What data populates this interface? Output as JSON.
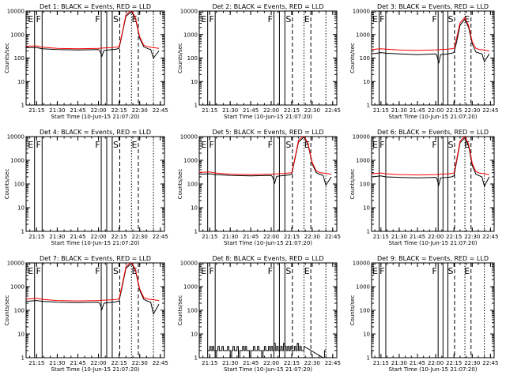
{
  "colors": {
    "events": "#000000",
    "lld": "#ff0000",
    "background": "#ffffff"
  },
  "common": {
    "xlabel": "Start Time (10-Jun-15 21:07:20)",
    "ylabel": "Counts/sec",
    "ylim": [
      1,
      10000
    ],
    "y_scale": "log",
    "ytick_values": [
      1,
      10,
      100,
      1000,
      10000
    ],
    "ytick_labels": [
      "1",
      "10",
      "100",
      "1000",
      "10000"
    ],
    "xlim": [
      "21:07:20",
      "22:48:00"
    ],
    "xtick_values": [
      "21:15",
      "21:30",
      "21:45",
      "22:00",
      "22:15",
      "22:30",
      "22:45"
    ],
    "xtick_labels": [
      "21:15",
      "21:30",
      "21:45",
      "22:00",
      "22:15",
      "22:30",
      "22:45"
    ],
    "markers": [
      {
        "time": "21:13:30",
        "style": "solid",
        "label": "E"
      },
      {
        "time": "21:19:00",
        "style": "solid",
        "label": "F"
      },
      {
        "time": "22:02:00",
        "style": "solid",
        "label": "F"
      },
      {
        "time": "22:06:00",
        "style": "solid",
        "label": ""
      },
      {
        "time": "22:10:00",
        "style": "solid",
        "label": ""
      },
      {
        "time": "22:15:30",
        "style": "dashed",
        "label": "S"
      },
      {
        "time": "22:24:00",
        "style": "dotted",
        "label": ""
      },
      {
        "time": "22:29:00",
        "style": "dashed",
        "label": "E"
      },
      {
        "time": "22:40:00",
        "style": "dotted",
        "label": ""
      }
    ]
  },
  "chart_data": [
    {
      "type": "line",
      "title": "Det 1: BLACK = Events, RED = LLD",
      "series": [
        {
          "name": "Events",
          "x": [
            "21:07:20",
            "21:15",
            "21:19",
            "21:30",
            "21:45",
            "22:00",
            "22:01",
            "22:02:30",
            "22:04",
            "22:10",
            "22:13",
            "22:15",
            "22:17",
            "22:20",
            "22:24",
            "22:27",
            "22:30",
            "22:33",
            "22:36",
            "22:38",
            "22:40",
            "22:44"
          ],
          "values": [
            280,
            280,
            250,
            230,
            220,
            230,
            200,
            120,
            210,
            230,
            240,
            260,
            900,
            6000,
            9500,
            4500,
            700,
            300,
            250,
            230,
            100,
            200
          ]
        },
        {
          "name": "LLD",
          "x": [
            "21:07:20",
            "21:15",
            "21:19",
            "21:30",
            "21:45",
            "22:00",
            "22:04",
            "22:10",
            "22:13",
            "22:15",
            "22:17",
            "22:20",
            "22:24",
            "22:27",
            "22:30",
            "22:33",
            "22:36",
            "22:40",
            "22:44"
          ],
          "values": [
            320,
            330,
            290,
            260,
            250,
            260,
            270,
            280,
            290,
            300,
            1000,
            7000,
            11000,
            5000,
            800,
            350,
            300,
            280,
            260
          ]
        }
      ]
    },
    {
      "type": "line",
      "title": "Det 2: BLACK = Events, RED = LLD",
      "series": []
    },
    {
      "type": "line",
      "title": "Det 3: BLACK = Events, RED = LLD",
      "series": [
        {
          "name": "Events",
          "x": [
            "21:07:20",
            "21:15",
            "21:19",
            "21:30",
            "21:45",
            "22:00",
            "22:01",
            "22:02:30",
            "22:04",
            "22:10",
            "22:13",
            "22:15",
            "22:17",
            "22:20",
            "22:24",
            "22:27",
            "22:30",
            "22:33",
            "22:36",
            "22:38",
            "22:40",
            "22:44"
          ],
          "values": [
            150,
            170,
            160,
            150,
            140,
            150,
            130,
            60,
            140,
            150,
            160,
            170,
            450,
            2500,
            4500,
            2000,
            400,
            180,
            160,
            150,
            70,
            150
          ]
        },
        {
          "name": "LLD",
          "x": [
            "21:07:20",
            "21:15",
            "21:19",
            "21:30",
            "21:45",
            "22:00",
            "22:04",
            "22:10",
            "22:13",
            "22:15",
            "22:17",
            "22:20",
            "22:24",
            "22:27",
            "22:30",
            "22:33",
            "22:36",
            "22:40",
            "22:44"
          ],
          "values": [
            230,
            250,
            240,
            220,
            210,
            220,
            230,
            240,
            250,
            260,
            650,
            3200,
            5200,
            2400,
            500,
            260,
            230,
            220,
            200
          ]
        }
      ]
    },
    {
      "type": "line",
      "title": "Det 4: BLACK = Events, RED = LLD",
      "series": []
    },
    {
      "type": "line",
      "title": "Det 5: BLACK = Events, RED = LLD",
      "series": [
        {
          "name": "Events",
          "x": [
            "21:07:20",
            "21:15",
            "21:19",
            "21:30",
            "21:45",
            "22:00",
            "22:01",
            "22:02:30",
            "22:04",
            "22:10",
            "22:13",
            "22:15",
            "22:17",
            "22:20",
            "22:24",
            "22:27",
            "22:30",
            "22:33",
            "22:36",
            "22:38",
            "22:40",
            "22:44"
          ],
          "values": [
            260,
            270,
            250,
            230,
            220,
            230,
            200,
            110,
            210,
            230,
            240,
            260,
            900,
            6000,
            9500,
            4500,
            700,
            300,
            250,
            230,
            90,
            200
          ]
        },
        {
          "name": "LLD",
          "x": [
            "21:07:20",
            "21:15",
            "21:19",
            "21:30",
            "21:45",
            "22:00",
            "22:04",
            "22:10",
            "22:13",
            "22:15",
            "22:17",
            "22:20",
            "22:24",
            "22:27",
            "22:30",
            "22:33",
            "22:36",
            "22:40",
            "22:44"
          ],
          "values": [
            310,
            320,
            290,
            260,
            250,
            260,
            270,
            280,
            290,
            300,
            1000,
            7000,
            11000,
            5000,
            800,
            350,
            300,
            280,
            260
          ]
        }
      ]
    },
    {
      "type": "line",
      "title": "Det 6: BLACK = Events, RED = LLD",
      "series": [
        {
          "name": "Events",
          "x": [
            "21:07:20",
            "21:15",
            "21:19",
            "21:30",
            "21:45",
            "22:00",
            "22:01",
            "22:02:30",
            "22:04",
            "22:10",
            "22:13",
            "22:15",
            "22:17",
            "22:20",
            "22:24",
            "22:27",
            "22:30",
            "22:33",
            "22:36",
            "22:38",
            "22:40",
            "22:44"
          ],
          "values": [
            200,
            220,
            200,
            190,
            180,
            190,
            170,
            90,
            180,
            190,
            200,
            220,
            800,
            5500,
            9000,
            4000,
            600,
            260,
            220,
            200,
            80,
            200
          ]
        },
        {
          "name": "LLD",
          "x": [
            "21:07:20",
            "21:15",
            "21:19",
            "21:30",
            "21:45",
            "22:00",
            "22:04",
            "22:10",
            "22:13",
            "22:15",
            "22:17",
            "22:20",
            "22:24",
            "22:27",
            "22:30",
            "22:33",
            "22:36",
            "22:40",
            "22:44"
          ],
          "values": [
            270,
            290,
            270,
            250,
            240,
            250,
            260,
            270,
            280,
            290,
            950,
            6500,
            10500,
            4800,
            750,
            330,
            290,
            270,
            250
          ]
        }
      ]
    },
    {
      "type": "line",
      "title": "Det 7: BLACK = Events, RED = LLD",
      "series": [
        {
          "name": "Events",
          "x": [
            "21:07:20",
            "21:15",
            "21:19",
            "21:30",
            "21:45",
            "22:00",
            "22:01",
            "22:02:30",
            "22:04",
            "22:10",
            "22:13",
            "22:15",
            "22:17",
            "22:20",
            "22:24",
            "22:27",
            "22:30",
            "22:33",
            "22:36",
            "22:38",
            "22:40",
            "22:44"
          ],
          "values": [
            240,
            260,
            240,
            220,
            210,
            220,
            190,
            110,
            200,
            220,
            230,
            250,
            850,
            6000,
            9500,
            4500,
            700,
            290,
            240,
            220,
            70,
            180
          ]
        },
        {
          "name": "LLD",
          "x": [
            "21:07:20",
            "21:15",
            "21:19",
            "21:30",
            "21:45",
            "22:00",
            "22:04",
            "22:10",
            "22:13",
            "22:15",
            "22:17",
            "22:20",
            "22:24",
            "22:27",
            "22:30",
            "22:33",
            "22:36",
            "22:40",
            "22:44"
          ],
          "values": [
            300,
            320,
            290,
            260,
            250,
            260,
            270,
            280,
            290,
            300,
            1000,
            7000,
            11000,
            5000,
            800,
            350,
            300,
            280,
            260
          ]
        }
      ]
    },
    {
      "type": "line",
      "title": "Det 8: BLACK = Events, RED = LLD",
      "series": [
        {
          "name": "Events",
          "x": [
            "21:13:30",
            "21:15",
            "21:16",
            "21:17",
            "21:18",
            "21:19",
            "21:20",
            "21:21",
            "21:22",
            "21:23",
            "21:24",
            "21:25",
            "21:26",
            "21:27",
            "21:28",
            "21:29",
            "21:30",
            "21:31",
            "21:32",
            "21:33",
            "21:34",
            "21:35",
            "21:36",
            "21:37",
            "21:38",
            "21:39",
            "21:40",
            "21:41",
            "21:42",
            "21:43",
            "21:44",
            "21:45",
            "21:46",
            "21:47",
            "21:48",
            "21:49",
            "21:50",
            "21:51",
            "21:52",
            "21:53",
            "21:54",
            "21:55",
            "21:56",
            "21:57",
            "21:58",
            "21:59",
            "22:00",
            "22:01",
            "22:02",
            "22:03",
            "22:04",
            "22:05",
            "22:06",
            "22:07",
            "22:08",
            "22:09",
            "22:10",
            "22:11",
            "22:12",
            "22:13",
            "22:14",
            "22:15",
            "22:16",
            "22:17",
            "22:18",
            "22:19",
            "22:20",
            "22:21",
            "22:22",
            "22:23",
            "22:24",
            "22:38",
            "22:39",
            "22:40"
          ],
          "values": [
            2,
            3,
            2,
            3,
            2,
            1,
            2,
            3,
            2,
            2,
            3,
            2,
            2,
            2,
            3,
            2,
            1,
            2,
            3,
            2,
            2,
            3,
            1,
            2,
            2,
            3,
            2,
            3,
            2,
            2,
            1,
            2,
            2,
            3,
            2,
            2,
            3,
            2,
            2,
            1,
            2,
            3,
            2,
            2,
            3,
            2,
            3,
            2,
            4,
            2,
            3,
            2,
            2,
            3,
            2,
            4,
            3,
            2,
            3,
            2,
            3,
            2,
            2,
            3,
            2,
            4,
            2,
            3,
            2,
            2,
            3,
            1,
            2,
            2
          ]
        }
      ]
    },
    {
      "type": "line",
      "title": "Det 9: BLACK = Events, RED = LLD",
      "series": [
        {
          "name": "Events",
          "x": [
            "21:07:20",
            "21:07:40"
          ],
          "values": [
            1,
            2
          ]
        }
      ]
    }
  ]
}
